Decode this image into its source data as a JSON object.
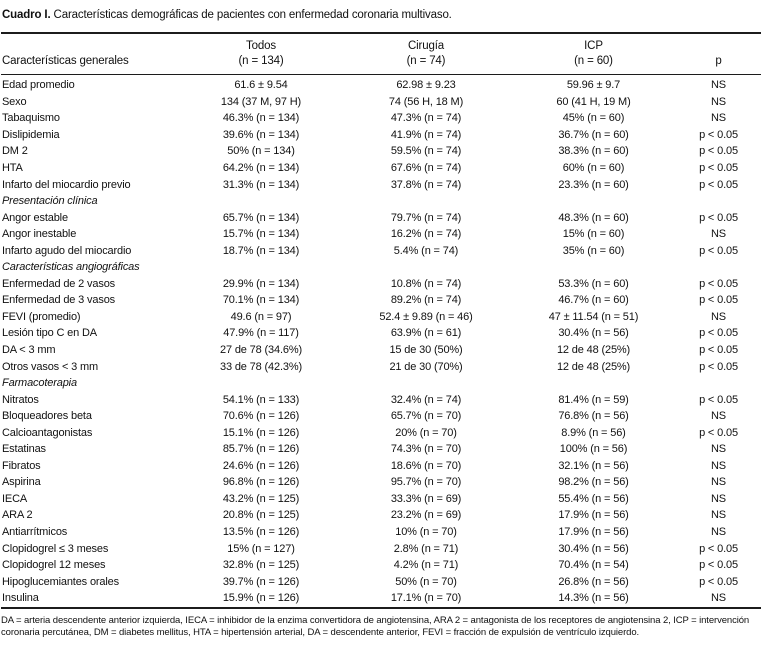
{
  "title": {
    "label": "Cuadro I.",
    "rest": "Características demográficas de pacientes con enfermedad coronaria multivaso."
  },
  "table": {
    "header": {
      "label_col": "Características generales",
      "todos": {
        "title": "Todos",
        "n": "(n = 134)"
      },
      "cirugia": {
        "title": "Cirugía",
        "n": "(n = 74)"
      },
      "icp": {
        "title": "ICP",
        "n": "(n = 60)"
      },
      "p": "p"
    },
    "rows": [
      {
        "label": "Edad promedio",
        "todos": "61.6 ± 9.54",
        "cirugia": "62.98 ± 9.23",
        "icp": "59.96 ± 9.7",
        "p": "NS"
      },
      {
        "label": "Sexo",
        "todos": "134 (37 M, 97 H)",
        "cirugia": "74 (56 H, 18 M)",
        "icp": "60 (41 H, 19 M)",
        "p": "NS"
      },
      {
        "label": "Tabaquismo",
        "todos": "46.3% (n = 134)",
        "cirugia": "47.3% (n = 74)",
        "icp": "45% (n = 60)",
        "p": "NS"
      },
      {
        "label": "Dislipidemia",
        "todos": "39.6% (n = 134)",
        "cirugia": "41.9% (n = 74)",
        "icp": "36.7% (n = 60)",
        "p": "p < 0.05"
      },
      {
        "label": "DM 2",
        "todos": "50% (n = 134)",
        "cirugia": "59.5% (n = 74)",
        "icp": "38.3% (n = 60)",
        "p": "p < 0.05"
      },
      {
        "label": "HTA",
        "todos": "64.2% (n = 134)",
        "cirugia": "67.6% (n = 74)",
        "icp": "60% (n = 60)",
        "p": "p < 0.05"
      },
      {
        "label": "Infarto del miocardio previo",
        "todos": "31.3% (n = 134)",
        "cirugia": "37.8% (n = 74)",
        "icp": "23.3% (n = 60)",
        "p": "p < 0.05"
      },
      {
        "section": true,
        "label": "Presentación clínica"
      },
      {
        "label": "Angor estable",
        "todos": "65.7% (n = 134)",
        "cirugia": "79.7% (n = 74)",
        "icp": "48.3% (n = 60)",
        "p": "p < 0.05"
      },
      {
        "label": "Angor inestable",
        "todos": "15.7% (n = 134)",
        "cirugia": "16.2% (n = 74)",
        "icp": "15% (n = 60)",
        "p": "NS"
      },
      {
        "label": "Infarto agudo del miocardio",
        "todos": "18.7% (n = 134)",
        "cirugia": "5.4% (n = 74)",
        "icp": "35% (n = 60)",
        "p": "p < 0.05"
      },
      {
        "section": true,
        "label": "Características angiográficas"
      },
      {
        "label": "Enfermedad de 2 vasos",
        "todos": "29.9% (n = 134)",
        "cirugia": "10.8% (n = 74)",
        "icp": "53.3% (n = 60)",
        "p": "p < 0.05"
      },
      {
        "label": "Enfermedad de 3 vasos",
        "todos": "70.1% (n = 134)",
        "cirugia": "89.2% (n = 74)",
        "icp": "46.7% (n = 60)",
        "p": "p < 0.05"
      },
      {
        "label": "FEVI (promedio)",
        "todos": "49.6 (n = 97)",
        "cirugia": "52.4 ± 9.89 (n = 46)",
        "icp": "47 ± 11.54 (n = 51)",
        "p": "NS"
      },
      {
        "label": "Lesión tipo C en DA",
        "todos": "47.9% (n = 117)",
        "cirugia": "63.9% (n = 61)",
        "icp": "30.4% (n = 56)",
        "p": "p < 0.05"
      },
      {
        "label": "DA < 3 mm",
        "todos": "27 de 78 (34.6%)",
        "cirugia": "15 de 30 (50%)",
        "icp": "12 de 48 (25%)",
        "p": "p < 0.05"
      },
      {
        "label": "Otros vasos < 3 mm",
        "todos": "33 de 78 (42.3%)",
        "cirugia": "21 de 30 (70%)",
        "icp": "12 de 48 (25%)",
        "p": "p < 0.05"
      },
      {
        "section": true,
        "label": "Farmacoterapia"
      },
      {
        "label": "Nitratos",
        "todos": "54.1% (n = 133)",
        "cirugia": "32.4% (n = 74)",
        "icp": "81.4% (n = 59)",
        "p": "p < 0.05"
      },
      {
        "label": "Bloqueadores beta",
        "todos": "70.6% (n = 126)",
        "cirugia": "65.7% (n = 70)",
        "icp": "76.8% (n = 56)",
        "p": "NS"
      },
      {
        "label": "Calcioantagonistas",
        "todos": "15.1% (n = 126)",
        "cirugia": "20% (n = 70)",
        "icp": "8.9% (n = 56)",
        "p": "p < 0.05"
      },
      {
        "label": "Estatinas",
        "todos": "85.7% (n = 126)",
        "cirugia": "74.3% (n = 70)",
        "icp": "100% (n = 56)",
        "p": "NS"
      },
      {
        "label": "Fibratos",
        "todos": "24.6% (n = 126)",
        "cirugia": "18.6% (n = 70)",
        "icp": "32.1% (n = 56)",
        "p": "NS"
      },
      {
        "label": "Aspirina",
        "todos": "96.8% (n = 126)",
        "cirugia": "95.7% (n = 70)",
        "icp": "98.2% (n = 56)",
        "p": "NS"
      },
      {
        "label": "IECA",
        "todos": "43.2% (n = 125)",
        "cirugia": "33.3% (n = 69)",
        "icp": "55.4% (n = 56)",
        "p": "NS"
      },
      {
        "label": "ARA 2",
        "todos": "20.8% (n = 125)",
        "cirugia": "23.2% (n = 69)",
        "icp": "17.9% (n = 56)",
        "p": "NS"
      },
      {
        "label": "Antiarrítmicos",
        "todos": "13.5% (n = 126)",
        "cirugia": "10% (n = 70)",
        "icp": "17.9% (n = 56)",
        "p": "NS"
      },
      {
        "label": "Clopidogrel ≤ 3 meses",
        "todos": "15% (n = 127)",
        "cirugia": "2.8% (n = 71)",
        "icp": "30.4% (n = 56)",
        "p": "p < 0.05"
      },
      {
        "label": "Clopidogrel 12 meses",
        "todos": "32.8% (n = 125)",
        "cirugia": "4.2% (n = 71)",
        "icp": "70.4% (n = 54)",
        "p": "p < 0.05"
      },
      {
        "label": "Hipoglucemiantes orales",
        "todos": "39.7% (n = 126)",
        "cirugia": "50% (n = 70)",
        "icp": "26.8% (n = 56)",
        "p": "p < 0.05"
      },
      {
        "label": "Insulina",
        "todos": "15.9% (n = 126)",
        "cirugia": "17.1% (n = 70)",
        "icp": "14.3% (n = 56)",
        "p": "NS"
      }
    ]
  },
  "footnote": "DA = arteria descendente anterior izquierda, IECA = inhibidor de la enzima convertidora de angiotensina, ARA 2 = antagonista de los receptores de angiotensina 2, ICP = intervención coronaria percutánea, DM = diabetes mellitus, HTA = hipertensión arterial, DA = descendente anterior, FEVI = fracción de expulsión de ventrículo izquierdo."
}
